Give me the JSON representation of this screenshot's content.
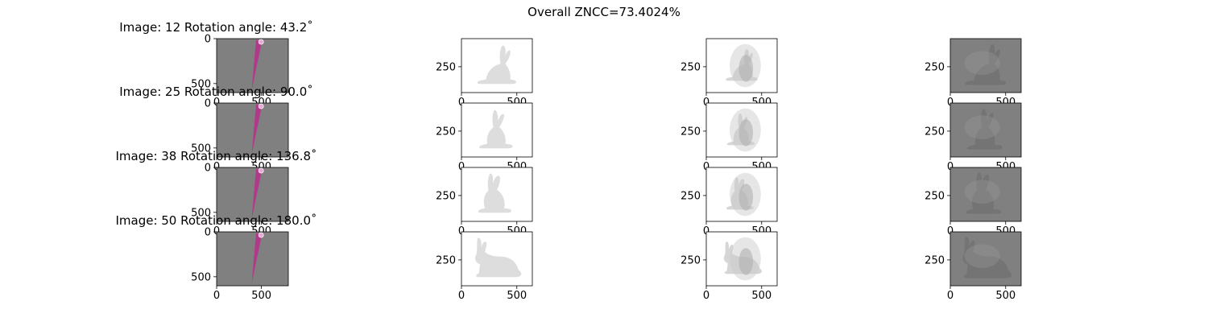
{
  "chart_data": {
    "type": "image-grid",
    "title": "Overall ZNCC=73.4024%",
    "rows": [
      {
        "label": "Image: 12 Rotation angle: 43.2˚",
        "image": 12,
        "angle": 43.2,
        "bunny_pose": "upright-right"
      },
      {
        "label": "Image: 25 Rotation angle: 90.0˚",
        "image": 25,
        "angle": 90.0,
        "bunny_pose": "upright-front"
      },
      {
        "label": "Image: 38 Rotation angle: 136.8˚",
        "image": 38,
        "angle": 136.8,
        "bunny_pose": "upright-left"
      },
      {
        "label": "Image: 50 Rotation angle: 180.0˚",
        "image": 50,
        "angle": 180.0,
        "bunny_pose": "sitting-left"
      }
    ],
    "col1": {
      "xticks": [
        0,
        500
      ],
      "yticks": [
        0,
        500
      ],
      "xlim": [
        0,
        800
      ],
      "ylim": [
        600,
        0
      ]
    },
    "col2": {
      "xticks": [
        0,
        500
      ],
      "yticks": [
        250
      ],
      "xlim": [
        0,
        640
      ],
      "ylim": [
        480,
        0
      ]
    },
    "col3": {
      "xticks": [
        0,
        500
      ],
      "yticks": [
        250
      ],
      "xlim": [
        0,
        640
      ],
      "ylim": [
        480,
        0
      ]
    },
    "col4": {
      "xticks": [
        0,
        500
      ],
      "yticks": [
        250
      ],
      "xlim": [
        0,
        640
      ],
      "ylim": [
        480,
        0
      ]
    }
  },
  "colors": {
    "gray_panel": "#808080",
    "white_panel": "#ffffff",
    "magenta_wedge": "#b03a8a",
    "bunny_light": "#d9d9d9",
    "bunny_dark": "#6a6a6a"
  }
}
